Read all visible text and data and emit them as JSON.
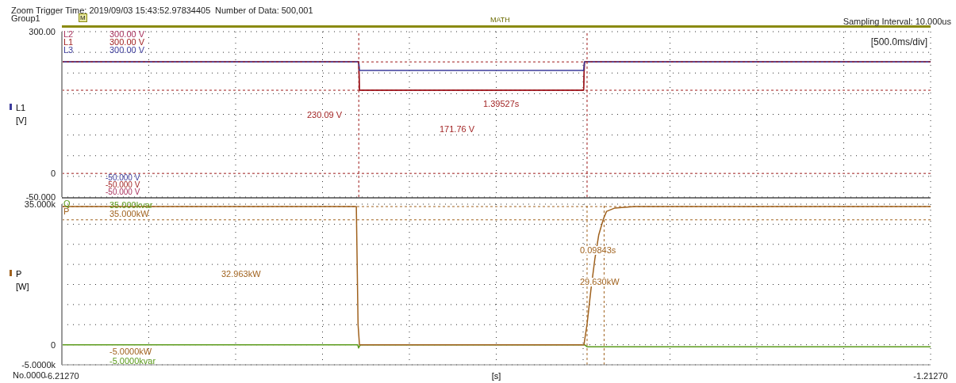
{
  "chart_data": [
    {
      "type": "line",
      "ylabel": "L1 [V]",
      "legend": "top left",
      "grid": true,
      "tick_labels": "y",
      "line_style": "solid",
      "marker": "none",
      "annotations": [
        "Zoom Trigger Time: 2019/09/03 15:43:52.97834405",
        "Number of Data: 500,001",
        "Group1",
        "Sampling Interval: 10.000us",
        "[500.0ms/div]",
        "MATH",
        "M",
        "300.00 V",
        "300.00 V",
        "300.00 V",
        "-50.000 V",
        "-50.000 V",
        "-50.000 V",
        "230.09 V",
        "171.76 V",
        "1.39527s"
      ],
      "xlim": [
        -6.2127,
        -1.2127
      ],
      "xticks": [
        {
          "value": -6.2127,
          "label": null
        },
        {
          "value": -5.7127,
          "label": null
        },
        {
          "value": -5.2127,
          "label": null
        },
        {
          "value": -4.7127,
          "label": null
        },
        {
          "value": -4.2127,
          "label": null
        },
        {
          "value": -3.7127,
          "label": null
        },
        {
          "value": -3.2127,
          "label": null
        },
        {
          "value": -2.7127,
          "label": null
        },
        {
          "value": -2.2127,
          "label": null
        },
        {
          "value": -1.7127,
          "label": null
        },
        {
          "value": -1.2127,
          "label": null
        }
      ],
      "ylim": [
        -50,
        300
      ],
      "yticks": [
        {
          "value": 300,
          "label": "300.00"
        },
        {
          "value": 256.25,
          "label": null
        },
        {
          "value": 212.5,
          "label": null
        },
        {
          "value": 168.75,
          "label": null
        },
        {
          "value": 125,
          "label": null
        },
        {
          "value": 81.25,
          "label": null
        },
        {
          "value": 37.5,
          "label": null
        },
        {
          "value": 0,
          "label": "0"
        },
        {
          "value": -6.25,
          "label": null
        },
        {
          "value": -50,
          "label": "-50.000"
        }
      ],
      "ref_lines": [
        {
          "axis": "y",
          "value": 236,
          "color": "#9e1b1b",
          "line_style": "dashed"
        },
        {
          "axis": "y",
          "value": 176,
          "color": "#9e1b1b",
          "line_style": "dashed"
        },
        {
          "axis": "y",
          "value": 0,
          "color": "#9e1b1b",
          "line_style": "dashed"
        },
        {
          "axis": "x",
          "value": -4.504,
          "color": "#9e1b1b",
          "line_style": "dashed"
        },
        {
          "axis": "x",
          "value": -3.19,
          "color": "#9e1b1b",
          "line_style": "dashed"
        }
      ],
      "series": [
        {
          "name": "L2",
          "color": "#a8305c",
          "x": [
            -6.2127,
            -4.504,
            -4.5,
            -3.21,
            -3.205,
            -1.2127
          ],
          "values": [
            236,
            236,
            176,
            176,
            236,
            236
          ]
        },
        {
          "name": "L1",
          "color": "#9e1b1b",
          "x": [
            -6.2127,
            -4.504,
            -4.5,
            -3.21,
            -3.205,
            -1.2127
          ],
          "values": [
            236,
            236,
            176,
            176,
            236,
            236
          ]
        },
        {
          "name": "L3",
          "color": "#3c3c9c",
          "x": [
            -6.2127,
            -4.504,
            -4.5,
            -3.21,
            -3.205,
            -1.2127
          ],
          "values": [
            236,
            236,
            218,
            218,
            236,
            236
          ]
        }
      ]
    },
    {
      "type": "line",
      "ylabel": "P [W]",
      "xlabel": "[s]",
      "legend": "top left",
      "grid": true,
      "line_style": "solid",
      "marker": "none",
      "annotations": [
        "35.000kvar",
        "35.000kW",
        "-5.0000kW",
        "-5.0000kvar",
        "No.0000",
        "32.963kW",
        "0.09843s",
        "29.630kW"
      ],
      "xlim": [
        -6.2127,
        -1.2127
      ],
      "xticks": [
        {
          "value": -6.2127,
          "label": "-6.21270"
        },
        {
          "value": -5.7127,
          "label": null
        },
        {
          "value": -5.2127,
          "label": null
        },
        {
          "value": -4.7127,
          "label": null
        },
        {
          "value": -4.2127,
          "label": null
        },
        {
          "value": -3.7127,
          "label": null
        },
        {
          "value": -3.2127,
          "label": null
        },
        {
          "value": -2.7127,
          "label": null
        },
        {
          "value": -2.2127,
          "label": null
        },
        {
          "value": -1.7127,
          "label": null
        },
        {
          "value": -1.2127,
          "label": "-1.21270"
        }
      ],
      "ylim": [
        -5000,
        35000
      ],
      "yticks": [
        {
          "value": 35000,
          "label": "35.000k"
        },
        {
          "value": 30000,
          "label": null
        },
        {
          "value": 25000,
          "label": null
        },
        {
          "value": 20000,
          "label": null
        },
        {
          "value": 15000,
          "label": null
        },
        {
          "value": 10000,
          "label": null
        },
        {
          "value": 5000,
          "label": null
        },
        {
          "value": 0,
          "label": "0"
        },
        {
          "value": -5000,
          "label": "-5.0000k"
        }
      ],
      "ref_lines": [
        {
          "axis": "y",
          "value": 34400,
          "color": "#a0621e",
          "line_style": "dashed"
        },
        {
          "axis": "y",
          "value": 31100,
          "color": "#a0621e",
          "line_style": "dashed"
        },
        {
          "axis": "x",
          "value": -3.19,
          "color": "#a0621e",
          "line_style": "dashed"
        },
        {
          "axis": "x",
          "value": -3.092,
          "color": "#a0621e",
          "line_style": "dashed"
        }
      ],
      "series": [
        {
          "name": "Q",
          "color": "#5a9a1a",
          "x": [
            -6.2127,
            -4.51,
            -4.505,
            -4.495,
            -3.205,
            -3.19,
            -1.2127
          ],
          "values": [
            0,
            0,
            -800,
            0,
            0,
            -500,
            -500
          ]
        },
        {
          "name": "P",
          "color": "#a0621e",
          "x": [
            -6.2127,
            -4.518,
            -4.508,
            -4.5,
            -3.208,
            -3.19,
            -3.168,
            -3.145,
            -3.123,
            -3.096,
            -3.078,
            -3.033,
            -2.917,
            -1.2127
          ],
          "values": [
            34400,
            34400,
            5000,
            0,
            0,
            5100,
            13600,
            21400,
            27300,
            31300,
            33200,
            34000,
            34400,
            34400
          ]
        }
      ]
    }
  ]
}
